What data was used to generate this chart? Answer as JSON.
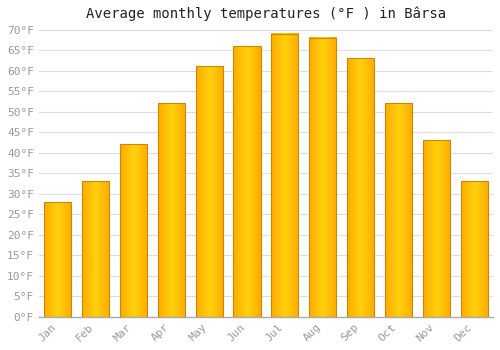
{
  "title": "Average monthly temperatures (°F ) in Bârsa",
  "months": [
    "Jan",
    "Feb",
    "Mar",
    "Apr",
    "May",
    "Jun",
    "Jul",
    "Aug",
    "Sep",
    "Oct",
    "Nov",
    "Dec"
  ],
  "values": [
    28,
    33,
    42,
    52,
    61,
    66,
    69,
    68,
    63,
    52,
    43,
    33
  ],
  "bar_color": "#FFA500",
  "bar_edge_color": "#CC8800",
  "background_color": "#FFFFFF",
  "grid_color": "#DDDDDD",
  "ylim": [
    0,
    70
  ],
  "ytick_step": 5,
  "title_fontsize": 10,
  "tick_fontsize": 8,
  "tick_color": "#999999",
  "title_color": "#222222"
}
